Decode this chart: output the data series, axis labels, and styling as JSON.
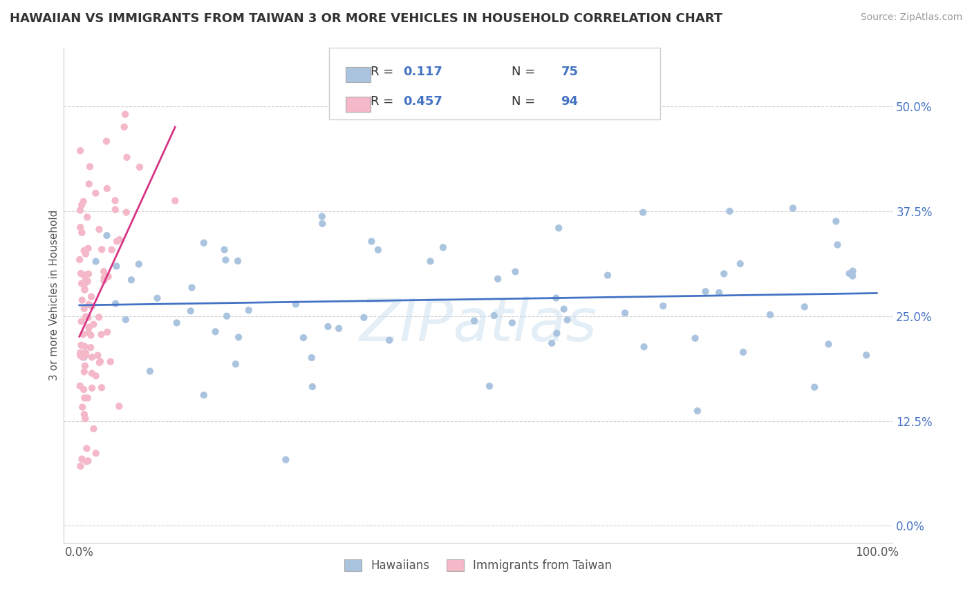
{
  "title": "HAWAIIAN VS IMMIGRANTS FROM TAIWAN 3 OR MORE VEHICLES IN HOUSEHOLD CORRELATION CHART",
  "source": "Source: ZipAtlas.com",
  "watermark": "ZIPatlas",
  "ylabel": "3 or more Vehicles in Household",
  "xlim": [
    -2.0,
    102.0
  ],
  "ylim": [
    -2.0,
    57.0
  ],
  "yticks": [
    0.0,
    12.5,
    25.0,
    37.5,
    50.0
  ],
  "xticks": [
    0.0,
    100.0
  ],
  "xtick_labels": [
    "0.0%",
    "100.0%"
  ],
  "ytick_labels": [
    "0.0%",
    "12.5%",
    "25.0%",
    "37.5%",
    "50.0%"
  ],
  "hawaiian_color": "#aac4e0",
  "taiwan_color": "#f4b8c8",
  "trend_blue": "#4472c4",
  "trend_pink": "#d63384",
  "R_hawaiian": 0.117,
  "N_hawaiian": 75,
  "R_taiwan": 0.457,
  "N_taiwan": 94,
  "legend_labels": [
    "Hawaiians",
    "Immigrants from Taiwan"
  ],
  "background_color": "#ffffff",
  "grid_color": "#d0d0d0",
  "title_fontsize": 13,
  "label_fontsize": 11,
  "tick_fontsize": 12
}
